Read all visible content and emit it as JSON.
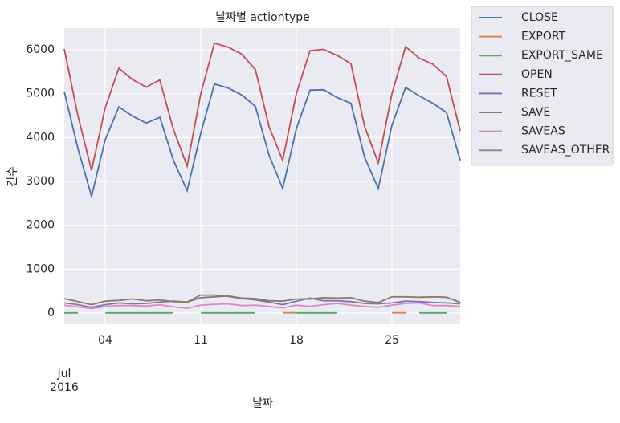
{
  "chart_data": {
    "type": "line",
    "title": "날짜별 actiontype",
    "xlabel": "날짜",
    "ylabel": "건수",
    "annotations": [
      "Jul",
      "2016"
    ],
    "x": [
      1,
      2,
      3,
      4,
      5,
      6,
      7,
      8,
      9,
      10,
      11,
      12,
      13,
      14,
      15,
      16,
      17,
      18,
      19,
      20,
      21,
      22,
      23,
      24,
      25,
      26,
      27,
      28,
      29,
      30
    ],
    "xlim": [
      1,
      30
    ],
    "xticks": [
      {
        "value": 4,
        "label": "04"
      },
      11,
      18,
      25
    ],
    "ylim": [
      -256,
      6494
    ],
    "yticks": [
      0,
      1000,
      2000,
      3000,
      4000,
      5000,
      6000
    ],
    "grid": true,
    "legend": "outside right",
    "series": [
      {
        "name": "CLOSE",
        "color": "#4c72b0",
        "values": [
          5050,
          3750,
          2660,
          3950,
          4700,
          4490,
          4330,
          4460,
          3480,
          2790,
          4100,
          5220,
          5130,
          4970,
          4710,
          3600,
          2840,
          4200,
          5080,
          5090,
          4910,
          4780,
          3550,
          2840,
          4280,
          5140,
          4950,
          4780,
          4570,
          3480
        ]
      },
      {
        "name": "EXPORT",
        "color": "#dd8452",
        "values": [
          null,
          null,
          null,
          null,
          null,
          null,
          null,
          null,
          null,
          null,
          null,
          null,
          null,
          null,
          null,
          null,
          5,
          5,
          null,
          null,
          null,
          null,
          null,
          null,
          5,
          5,
          null,
          null,
          null,
          null
        ]
      },
      {
        "name": "EXPORT_SAME",
        "color": "#55a868",
        "values": [
          3,
          3,
          null,
          3,
          3,
          3,
          3,
          3,
          3,
          null,
          3,
          3,
          3,
          3,
          3,
          null,
          null,
          3,
          3,
          3,
          3,
          null,
          null,
          null,
          null,
          null,
          3,
          3,
          3,
          null
        ]
      },
      {
        "name": "OPEN",
        "color": "#c44e52",
        "values": [
          6020,
          4500,
          3250,
          4680,
          5580,
          5320,
          5150,
          5310,
          4180,
          3350,
          5000,
          6150,
          6060,
          5900,
          5550,
          4250,
          3480,
          5000,
          5980,
          6010,
          5870,
          5680,
          4250,
          3420,
          5000,
          6070,
          5810,
          5670,
          5390,
          4150
        ]
      },
      {
        "name": "RESET",
        "color": "#8172b3",
        "values": [
          230,
          190,
          130,
          190,
          230,
          210,
          220,
          250,
          270,
          250,
          410,
          410,
          380,
          330,
          300,
          250,
          190,
          270,
          340,
          280,
          280,
          260,
          220,
          210,
          230,
          270,
          260,
          240,
          230,
          210
        ]
      },
      {
        "name": "SAVE",
        "color": "#937860",
        "values": [
          330,
          260,
          190,
          270,
          290,
          320,
          280,
          300,
          260,
          250,
          350,
          370,
          390,
          340,
          330,
          280,
          270,
          320,
          320,
          350,
          340,
          350,
          270,
          240,
          370,
          370,
          360,
          370,
          360,
          240
        ]
      },
      {
        "name": "SAVEAS",
        "color": "#da8bc3",
        "values": [
          180,
          140,
          100,
          150,
          170,
          170,
          160,
          190,
          140,
          110,
          180,
          200,
          210,
          170,
          180,
          150,
          120,
          180,
          150,
          190,
          220,
          180,
          150,
          130,
          180,
          220,
          230,
          170,
          170,
          150
        ]
      },
      {
        "name": "SAVEAS_OTHER",
        "color": "#8c8c8c",
        "values": [
          null,
          null,
          null,
          null,
          null,
          null,
          null,
          null,
          null,
          null,
          null,
          null,
          null,
          null,
          null,
          null,
          null,
          null,
          null,
          null,
          null,
          null,
          null,
          null,
          null,
          null,
          null,
          null,
          null,
          null
        ]
      }
    ]
  }
}
